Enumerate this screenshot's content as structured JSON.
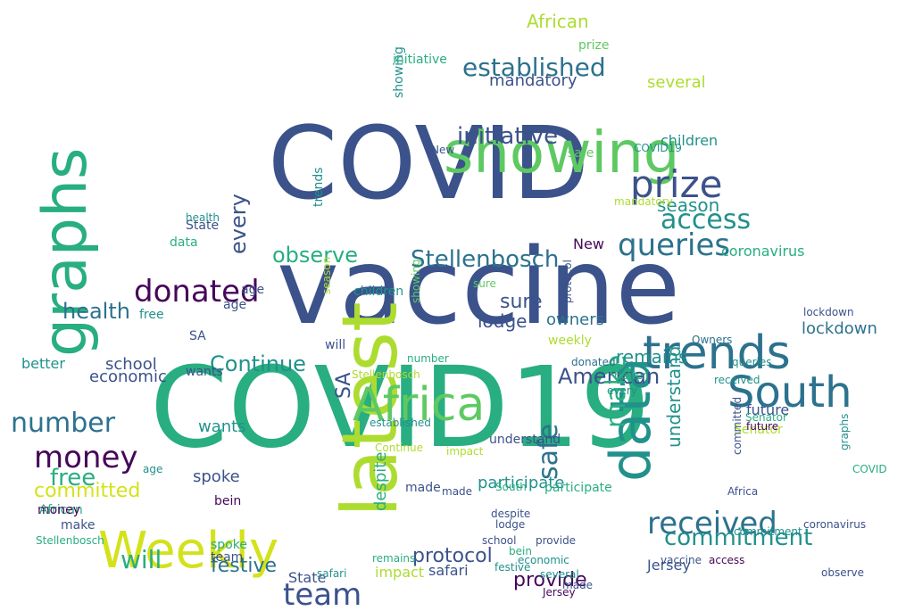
{
  "palette": {
    "dark_purple": "#46075a",
    "indigo": "#3b528b",
    "blue": "#2c728e",
    "teal": "#21918c",
    "green": "#28ae80",
    "light_green": "#5ec962",
    "lime": "#addc30",
    "yellow": "#d3e21a"
  },
  "words": [
    {
      "text": "COVID",
      "color": "indigo"
    },
    {
      "text": "vaccine",
      "color": "indigo"
    },
    {
      "text": "COVID19",
      "color": "green"
    },
    {
      "text": "latest",
      "color": "lime"
    },
    {
      "text": "showing",
      "color": "light_green"
    },
    {
      "text": "Weekly",
      "color": "yellow"
    },
    {
      "text": "data",
      "color": "teal"
    },
    {
      "text": "graphs",
      "color": "green"
    },
    {
      "text": "Africa",
      "color": "light_green"
    },
    {
      "text": "South",
      "color": "blue"
    },
    {
      "text": "trends",
      "color": "blue"
    },
    {
      "text": "prize",
      "color": "indigo"
    },
    {
      "text": "queries",
      "color": "blue"
    },
    {
      "text": "donated",
      "color": "dark_purple"
    },
    {
      "text": "money",
      "color": "dark_purple"
    },
    {
      "text": "number",
      "color": "blue"
    },
    {
      "text": "received",
      "color": "blue"
    },
    {
      "text": "team",
      "color": "indigo"
    },
    {
      "text": "established",
      "color": "blue"
    },
    {
      "text": "initiative",
      "color": "indigo"
    },
    {
      "text": "health",
      "color": "blue"
    },
    {
      "text": "access",
      "color": "teal"
    },
    {
      "text": "observe",
      "color": "green"
    },
    {
      "text": "Stellenbosch",
      "color": "blue"
    },
    {
      "text": "Continue",
      "color": "teal"
    },
    {
      "text": "American",
      "color": "indigo"
    },
    {
      "text": "commitment",
      "color": "teal"
    },
    {
      "text": "provide",
      "color": "dark_purple"
    },
    {
      "text": "free",
      "color": "green"
    },
    {
      "text": "committed",
      "color": "yellow"
    },
    {
      "text": "will",
      "color": "green"
    },
    {
      "text": "festive",
      "color": "blue"
    },
    {
      "text": "safe",
      "color": "blue"
    },
    {
      "text": "make",
      "color": "green"
    },
    {
      "text": "remains",
      "color": "teal"
    },
    {
      "text": "sure",
      "color": "indigo"
    },
    {
      "text": "every",
      "color": "indigo"
    },
    {
      "text": "season",
      "color": "teal"
    },
    {
      "text": "children",
      "color": "teal"
    },
    {
      "text": "coronavirus",
      "color": "green"
    },
    {
      "text": "lockdown",
      "color": "blue"
    },
    {
      "text": "mandatory",
      "color": "indigo"
    },
    {
      "text": "several",
      "color": "lime"
    },
    {
      "text": "African",
      "color": "lime"
    },
    {
      "text": "protocol",
      "color": "indigo"
    },
    {
      "text": "participate",
      "color": "teal"
    },
    {
      "text": "school",
      "color": "indigo"
    },
    {
      "text": "economic",
      "color": "indigo"
    },
    {
      "text": "lodge",
      "color": "indigo"
    },
    {
      "text": "understand",
      "color": "teal"
    },
    {
      "text": "impact",
      "color": "lime"
    },
    {
      "text": "safari",
      "color": "indigo"
    },
    {
      "text": "spoke",
      "color": "indigo"
    },
    {
      "text": "wants",
      "color": "teal"
    },
    {
      "text": "better",
      "color": "teal"
    },
    {
      "text": "owners",
      "color": "blue"
    },
    {
      "text": "future",
      "color": "indigo"
    },
    {
      "text": "Senator",
      "color": "lime"
    },
    {
      "text": "bein",
      "color": "dark_purple"
    },
    {
      "text": "Jersey",
      "color": "indigo"
    },
    {
      "text": "State",
      "color": "indigo"
    },
    {
      "text": "New",
      "color": "dark_purple"
    },
    {
      "text": "SA",
      "color": "indigo"
    },
    {
      "text": "age",
      "color": "indigo"
    },
    {
      "text": "despite",
      "color": "green"
    },
    {
      "text": "made",
      "color": "indigo"
    },
    {
      "text": "showing",
      "color": "teal"
    },
    {
      "text": "trends",
      "color": "teal"
    },
    {
      "text": "safe",
      "color": "light_green"
    },
    {
      "text": "prize",
      "color": "light_green"
    },
    {
      "text": "New",
      "color": "indigo"
    },
    {
      "text": "State",
      "color": "indigo"
    },
    {
      "text": "health",
      "color": "teal"
    },
    {
      "text": "data",
      "color": "green"
    },
    {
      "text": "SA",
      "color": "indigo"
    },
    {
      "text": "wants",
      "color": "indigo"
    },
    {
      "text": "age",
      "color": "indigo"
    },
    {
      "text": "team",
      "color": "indigo"
    },
    {
      "text": "will",
      "color": "indigo"
    },
    {
      "text": "number",
      "color": "green"
    },
    {
      "text": "free",
      "color": "teal"
    },
    {
      "text": "children",
      "color": "teal"
    },
    {
      "text": "African",
      "color": "green"
    },
    {
      "text": "make",
      "color": "indigo"
    },
    {
      "text": "money",
      "color": "dark_purple"
    },
    {
      "text": "Stellenbosch",
      "color": "green"
    },
    {
      "text": "safari",
      "color": "teal"
    },
    {
      "text": "remains",
      "color": "green"
    },
    {
      "text": "spoke",
      "color": "green"
    },
    {
      "text": "established",
      "color": "teal"
    },
    {
      "text": "weekly",
      "color": "lime"
    },
    {
      "text": "Stellenbosch",
      "color": "lime"
    },
    {
      "text": "Continue",
      "color": "lime"
    },
    {
      "text": "every",
      "color": "teal"
    },
    {
      "text": "better",
      "color": "green"
    },
    {
      "text": "made",
      "color": "indigo"
    },
    {
      "text": "participate",
      "color": "green"
    },
    {
      "text": "Senator",
      "color": "green"
    },
    {
      "text": "Jersey",
      "color": "dark_purple"
    },
    {
      "text": "lockdown",
      "color": "indigo"
    },
    {
      "text": "COVID",
      "color": "green"
    },
    {
      "text": "coronavirus",
      "color": "indigo"
    },
    {
      "text": "Africa",
      "color": "indigo"
    },
    {
      "text": "commitment",
      "color": "teal"
    },
    {
      "text": "access",
      "color": "dark_purple"
    },
    {
      "text": "vaccine",
      "color": "indigo"
    },
    {
      "text": "graphs",
      "color": "teal"
    },
    {
      "text": "future",
      "color": "dark_purple"
    },
    {
      "text": "observe",
      "color": "indigo"
    },
    {
      "text": "Owners",
      "color": "blue"
    },
    {
      "text": "donated",
      "color": "blue"
    },
    {
      "text": "made",
      "color": "indigo"
    },
    {
      "text": "several",
      "color": "teal"
    },
    {
      "text": "queries",
      "color": "teal"
    },
    {
      "text": "received",
      "color": "teal"
    },
    {
      "text": "despite",
      "color": "indigo"
    },
    {
      "text": "lodge",
      "color": "indigo"
    },
    {
      "text": "school",
      "color": "indigo"
    },
    {
      "text": "impact",
      "color": "lime"
    },
    {
      "text": "bein",
      "color": "green"
    },
    {
      "text": "festive",
      "color": "teal"
    },
    {
      "text": "provide",
      "color": "indigo"
    },
    {
      "text": "protocol",
      "color": "indigo"
    },
    {
      "text": "understand",
      "color": "indigo"
    },
    {
      "text": "South",
      "color": "green"
    },
    {
      "text": "age",
      "color": "teal"
    },
    {
      "text": "economic",
      "color": "teal"
    },
    {
      "text": "committed",
      "color": "indigo"
    },
    {
      "text": "COVID19",
      "color": "teal"
    },
    {
      "text": "sure",
      "color": "light_green"
    },
    {
      "text": "mandatory",
      "color": "lime"
    },
    {
      "text": "initiative",
      "color": "green"
    },
    {
      "text": "season",
      "color": "lime"
    },
    {
      "text": "showing",
      "color": "light_green"
    }
  ]
}
